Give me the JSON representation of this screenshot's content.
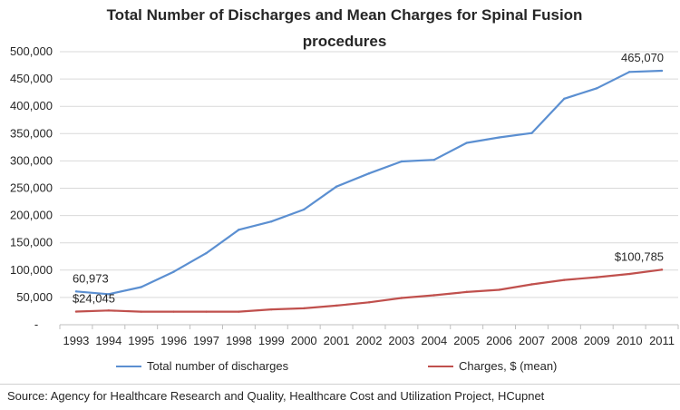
{
  "chart_data": {
    "type": "line",
    "title_line1": "Total Number of Discharges and Mean Charges for Spinal Fusion",
    "title_line2": "procedures",
    "x": [
      "1993",
      "1994",
      "1995",
      "1996",
      "1997",
      "1998",
      "1999",
      "2000",
      "2001",
      "2002",
      "2003",
      "2004",
      "2005",
      "2006",
      "2007",
      "2008",
      "2009",
      "2010",
      "2011"
    ],
    "y_tick_labels": [
      "-",
      "50,000",
      "100,000",
      "150,000",
      "200,000",
      "250,000",
      "300,000",
      "350,000",
      "400,000",
      "450,000",
      "500,000"
    ],
    "ylim": [
      0,
      500000
    ],
    "series": [
      {
        "name": "Total number of discharges",
        "color": "#5b8fd1",
        "values": [
          60973,
          56000,
          69000,
          97000,
          131000,
          174000,
          189000,
          211000,
          253000,
          277000,
          299000,
          302000,
          333000,
          343000,
          351000,
          414000,
          433000,
          463000,
          465070
        ]
      },
      {
        "name": "Charges, $ (mean)",
        "color": "#c0504d",
        "values": [
          24045,
          26000,
          24000,
          24000,
          24000,
          24000,
          28000,
          30000,
          35000,
          41000,
          49000,
          54000,
          60000,
          64000,
          74000,
          82000,
          87000,
          93000,
          100785
        ]
      }
    ],
    "annotations": [
      {
        "series": 0,
        "index": 0,
        "text": "60,973"
      },
      {
        "series": 0,
        "index": 18,
        "text": "465,070"
      },
      {
        "series": 1,
        "index": 0,
        "text": "$24,045"
      },
      {
        "series": 1,
        "index": 18,
        "text": "$100,785"
      }
    ],
    "grid": true,
    "legend_position": "bottom"
  },
  "source": "Source:  Agency for Healthcare Research and Quality, Healthcare Cost and Utilization Project, HCupnet"
}
